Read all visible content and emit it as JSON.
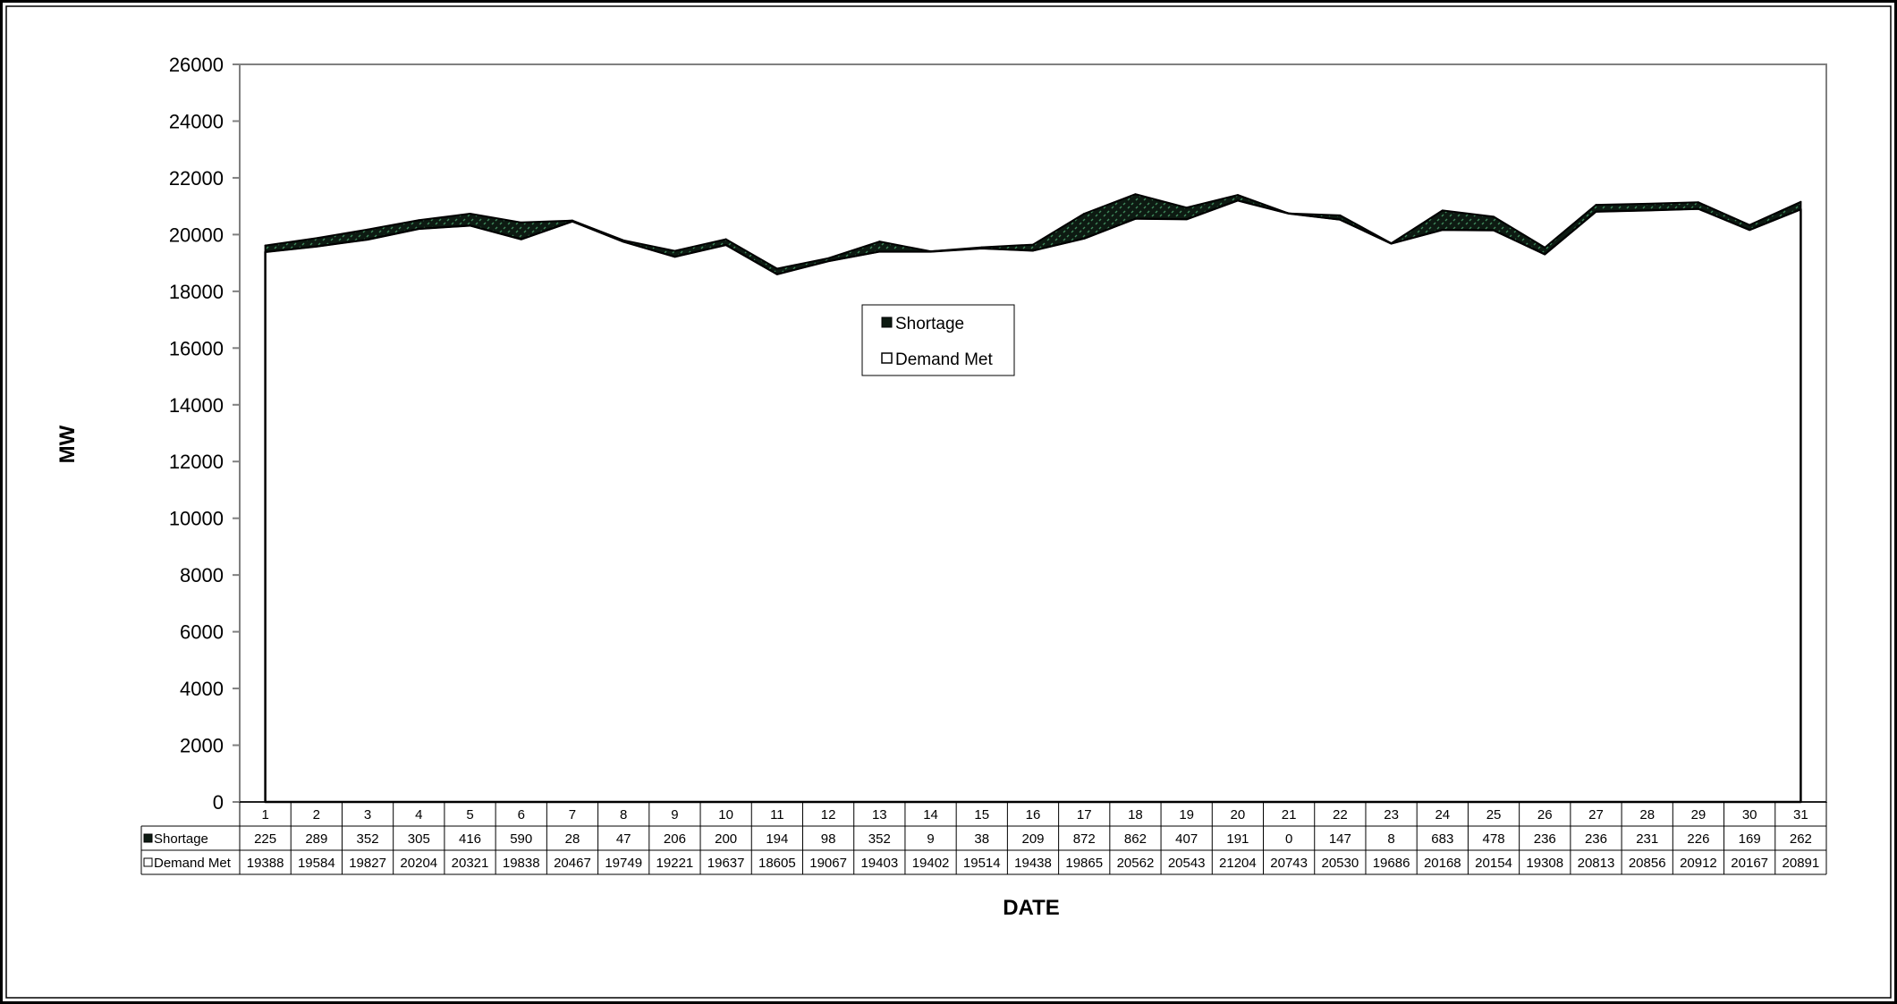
{
  "chart_data": {
    "type": "area",
    "stacked": true,
    "title": "",
    "xlabel": "DATE",
    "ylabel": "MW",
    "ylim": [
      0,
      26000
    ],
    "yticks": [
      0,
      2000,
      4000,
      6000,
      8000,
      10000,
      12000,
      14000,
      16000,
      18000,
      20000,
      22000,
      24000,
      26000
    ],
    "grid": false,
    "legend_position": "center",
    "data_table": true,
    "categories": [
      "1",
      "2",
      "3",
      "4",
      "5",
      "6",
      "7",
      "8",
      "9",
      "10",
      "11",
      "12",
      "13",
      "14",
      "15",
      "16",
      "17",
      "18",
      "19",
      "20",
      "21",
      "22",
      "23",
      "24",
      "25",
      "26",
      "27",
      "28",
      "29",
      "30",
      "31"
    ],
    "series": [
      {
        "name": "Demand Met",
        "color": "#ffffff",
        "values": [
          19388,
          19584,
          19827,
          20204,
          20321,
          19838,
          20467,
          19749,
          19221,
          19637,
          18605,
          19067,
          19403,
          19402,
          19514,
          19438,
          19865,
          20562,
          20543,
          21204,
          20743,
          20530,
          19686,
          20168,
          20154,
          19308,
          20813,
          20856,
          20912,
          20167,
          20891
        ]
      },
      {
        "name": "Shortage",
        "color": "#0d1a12",
        "values": [
          225,
          289,
          352,
          305,
          416,
          590,
          28,
          47,
          206,
          200,
          194,
          98,
          352,
          9,
          38,
          209,
          872,
          862,
          407,
          191,
          0,
          147,
          8,
          683,
          478,
          236,
          236,
          231,
          226,
          169,
          262
        ]
      }
    ]
  }
}
